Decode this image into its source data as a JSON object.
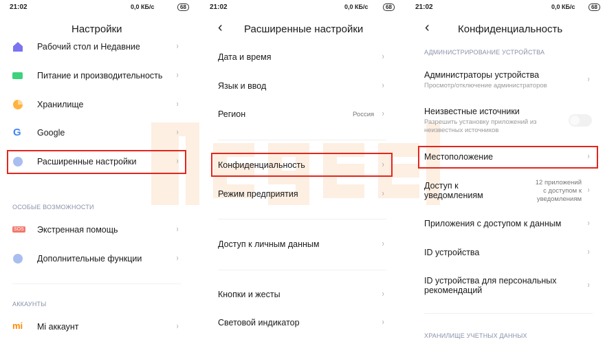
{
  "status": {
    "time": "21:02",
    "badge": "68",
    "net": "0,0 КБ/с",
    "battery": "68"
  },
  "watermark": "megeek",
  "p1": {
    "title": "Настройки",
    "items": [
      "Рабочий стол и Недавние",
      "Питание и производительность",
      "Хранилище",
      "Google",
      "Расширенные настройки"
    ],
    "section1": "ОСОБЫЕ ВОЗМОЖНОСТИ",
    "items2": [
      "Экстренная помощь",
      "Дополнительные функции"
    ],
    "section2": "АККАУНТЫ",
    "items3": [
      "Mi аккаунт"
    ],
    "sos": "SOS",
    "mi": "mi"
  },
  "p2": {
    "title": "Расширенные настройки",
    "items": [
      "Дата и время",
      "Язык и ввод",
      "Регион",
      "Конфиденциальность",
      "Режим предприятия",
      "Доступ к личным данным",
      "Кнопки и жесты",
      "Световой индикатор"
    ],
    "region_value": "Россия"
  },
  "p3": {
    "title": "Конфиденциальность",
    "section1": "АДМИНИСТРИРОВАНИЕ УСТРОЙСТВА",
    "admins": {
      "label": "Администраторы устройства",
      "sub": "Просмотр/отключение администраторов"
    },
    "unknown": {
      "label": "Неизвестные источники",
      "sub1": "Разрешить установку приложений из",
      "sub2": "неизвестных источников",
      "enabled": false
    },
    "location": "Местоположение",
    "notif": {
      "label1": "Доступ к",
      "label2": "уведомлениям",
      "v1": "12 приложений",
      "v2": "с доступом к",
      "v3": "уведомлениям"
    },
    "data_access": "Приложения с доступом к данным",
    "device_id": "ID устройства",
    "ad_id1": "ID устройства для персональных",
    "ad_id2": "рекомендаций",
    "section2": "ХРАНИЛИЩЕ УЧЕТНЫХ ДАННЫХ"
  },
  "chevron": "›",
  "back": "‹"
}
